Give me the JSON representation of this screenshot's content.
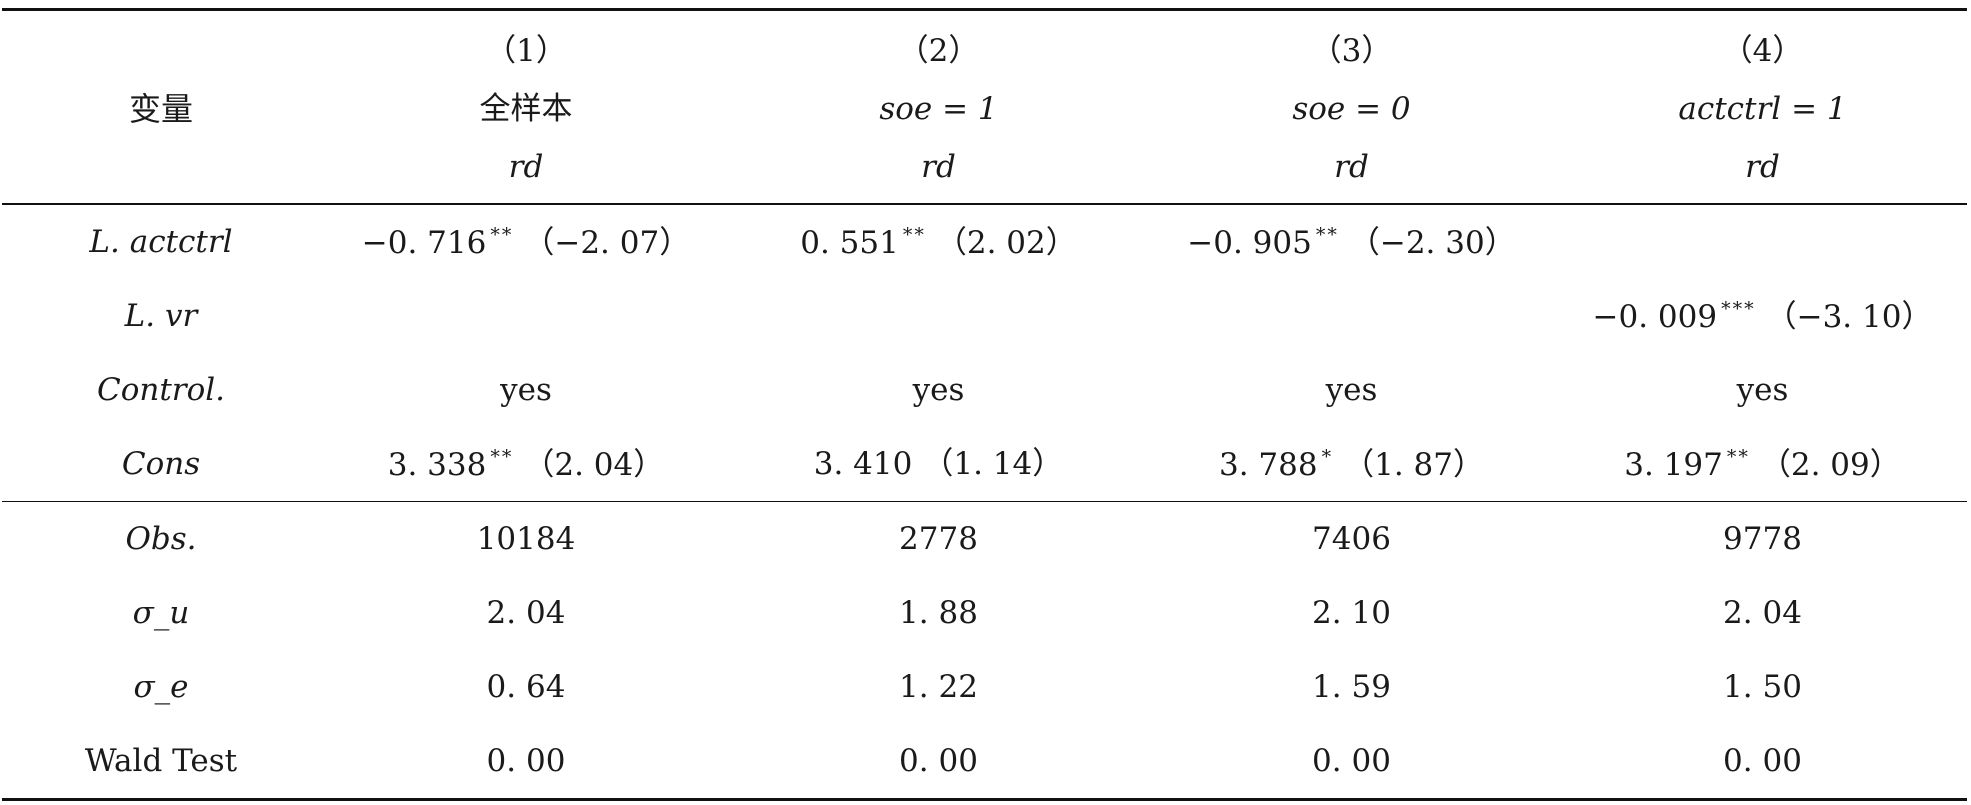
{
  "header": {
    "variable_label": "变量",
    "columns": [
      {
        "num": "（1）",
        "sample": "全样本",
        "sample_italic": false,
        "dep": "rd"
      },
      {
        "num": "（2）",
        "sample": "soe = 1",
        "sample_italic": true,
        "dep": "rd"
      },
      {
        "num": "（3）",
        "sample": "soe = 0",
        "sample_italic": true,
        "dep": "rd"
      },
      {
        "num": "（4）",
        "sample": "actctrl = 1",
        "sample_italic": true,
        "dep": "rd"
      }
    ]
  },
  "rows": [
    {
      "label": "L. actctrl",
      "cells": [
        {
          "coef": "−0. 716",
          "stars": "**",
          "t": "（−2. 07）"
        },
        {
          "coef": "0. 551",
          "stars": "**",
          "t": "（2. 02）"
        },
        {
          "coef": "−0. 905",
          "stars": "**",
          "t": "（−2. 30）"
        },
        {
          "coef": "",
          "stars": "",
          "t": ""
        }
      ]
    },
    {
      "label": "L. vr",
      "cells": [
        {
          "coef": "",
          "stars": "",
          "t": ""
        },
        {
          "coef": "",
          "stars": "",
          "t": ""
        },
        {
          "coef": "",
          "stars": "",
          "t": ""
        },
        {
          "coef": "−0. 009",
          "stars": "***",
          "t": "（−3. 10）"
        }
      ]
    },
    {
      "label": "Control.",
      "cells": [
        {
          "coef": "yes",
          "stars": "",
          "t": ""
        },
        {
          "coef": "yes",
          "stars": "",
          "t": ""
        },
        {
          "coef": "yes",
          "stars": "",
          "t": ""
        },
        {
          "coef": "yes",
          "stars": "",
          "t": ""
        }
      ]
    },
    {
      "label": "Cons",
      "cells": [
        {
          "coef": "3. 338",
          "stars": "**",
          "t": "（2. 04）"
        },
        {
          "coef": "3. 410",
          "stars": "",
          "t": "（1. 14）"
        },
        {
          "coef": "3. 788",
          "stars": "*",
          "t": "（1. 87）"
        },
        {
          "coef": "3. 197",
          "stars": "**",
          "t": "（2. 09）"
        }
      ]
    }
  ],
  "stats": [
    {
      "label": "Obs.",
      "italic": true,
      "values": [
        "10184",
        "2778",
        "7406",
        "9778"
      ]
    },
    {
      "label": "σ_u",
      "italic": true,
      "values": [
        "2. 04",
        "1. 88",
        "2. 10",
        "2. 04"
      ]
    },
    {
      "label": "σ_e",
      "italic": true,
      "values": [
        "0. 64",
        "1. 22",
        "1. 59",
        "1. 50"
      ]
    },
    {
      "label": "Wald Test",
      "italic": false,
      "values": [
        "0. 00",
        "0. 00",
        "0. 00",
        "0. 00"
      ]
    }
  ]
}
